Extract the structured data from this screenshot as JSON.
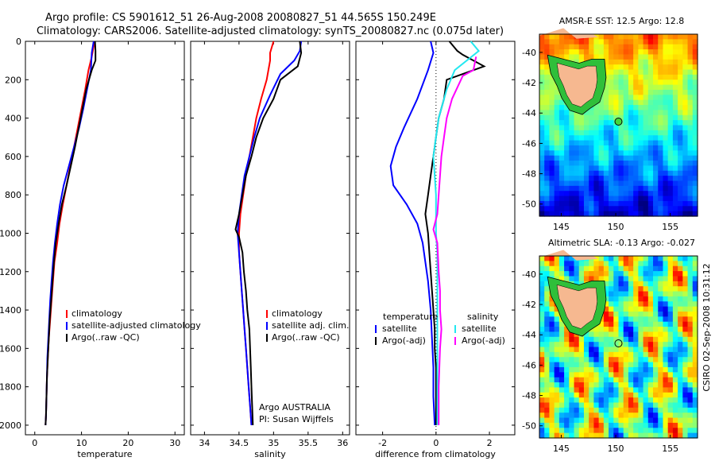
{
  "header": {
    "title_line1": "Argo profile: CS 5901612_51 26-Aug-2008 20080827_51 44.565S 150.249E",
    "title_line2": "Climatology: CARS2006. Satellite-adjusted climatology: synTS_20080827.nc (0.075d later)"
  },
  "timestamp": "CSIRO 02-Sep-2008 10:31:12",
  "colors": {
    "climatology": "#ff0000",
    "satellite": "#0000ff",
    "argo": "#000000",
    "salinity_satellite": "#22e8f0",
    "salinity_argo": "#ff00ff"
  },
  "chart_data": [
    {
      "type": "line",
      "name": "temperature-panel",
      "xlabel": "temperature",
      "ylabel": "",
      "xlim": [
        -2,
        32
      ],
      "ylim": [
        0,
        2050
      ],
      "xticks": [
        0,
        10,
        20,
        30
      ],
      "yticks": [
        0,
        200,
        400,
        600,
        800,
        1000,
        1200,
        1400,
        1600,
        1800,
        2000
      ],
      "y_reversed": true,
      "legend": [
        "climatology",
        "satellite-adjusted climatology",
        "Argo(..raw -QC)"
      ],
      "series": [
        {
          "name": "climatology",
          "color": "#ff0000",
          "points": [
            [
              12.8,
              0
            ],
            [
              12.2,
              80
            ],
            [
              11.5,
              150
            ],
            [
              10.8,
              250
            ],
            [
              10.0,
              350
            ],
            [
              9.2,
              450
            ],
            [
              8.4,
              550
            ],
            [
              7.6,
              650
            ],
            [
              6.8,
              750
            ],
            [
              6.0,
              850
            ],
            [
              5.3,
              950
            ],
            [
              4.8,
              1050
            ],
            [
              4.2,
              1150
            ],
            [
              3.9,
              1250
            ],
            [
              3.6,
              1350
            ],
            [
              3.3,
              1450
            ],
            [
              3.0,
              1550
            ],
            [
              2.8,
              1650
            ],
            [
              2.6,
              1750
            ],
            [
              2.5,
              1850
            ],
            [
              2.4,
              1950
            ],
            [
              2.3,
              2000
            ]
          ]
        },
        {
          "name": "satellite-adjusted climatology",
          "color": "#0000ff",
          "points": [
            [
              12.6,
              0
            ],
            [
              12.2,
              60
            ],
            [
              12.0,
              150
            ],
            [
              11.2,
              250
            ],
            [
              10.4,
              350
            ],
            [
              9.5,
              450
            ],
            [
              8.4,
              550
            ],
            [
              7.3,
              650
            ],
            [
              6.2,
              750
            ],
            [
              5.4,
              850
            ],
            [
              4.8,
              950
            ],
            [
              4.3,
              1050
            ],
            [
              3.9,
              1150
            ],
            [
              3.6,
              1250
            ],
            [
              3.3,
              1350
            ],
            [
              3.1,
              1450
            ],
            [
              2.9,
              1550
            ],
            [
              2.7,
              1650
            ],
            [
              2.6,
              1750
            ],
            [
              2.5,
              1850
            ],
            [
              2.4,
              1950
            ],
            [
              2.3,
              2000
            ]
          ]
        },
        {
          "name": "Argo(..raw -QC)",
          "color": "#000000",
          "points": [
            [
              12.9,
              0
            ],
            [
              13.0,
              50
            ],
            [
              13.0,
              100
            ],
            [
              12.2,
              150
            ],
            [
              11.0,
              250
            ],
            [
              10.2,
              350
            ],
            [
              9.4,
              450
            ],
            [
              8.6,
              550
            ],
            [
              7.7,
              650
            ],
            [
              6.8,
              750
            ],
            [
              5.8,
              850
            ],
            [
              5.1,
              950
            ],
            [
              4.5,
              1050
            ],
            [
              4.1,
              1150
            ],
            [
              3.8,
              1250
            ],
            [
              3.5,
              1350
            ],
            [
              3.2,
              1450
            ],
            [
              3.0,
              1550
            ],
            [
              2.8,
              1650
            ],
            [
              2.6,
              1750
            ],
            [
              2.5,
              1850
            ],
            [
              2.4,
              1950
            ],
            [
              2.3,
              2000
            ]
          ]
        }
      ]
    },
    {
      "type": "line",
      "name": "salinity-panel",
      "xlabel": "salinity",
      "xlim": [
        33.8,
        36.1
      ],
      "ylim": [
        0,
        2050
      ],
      "xticks": [
        34,
        34.5,
        35,
        35.5,
        36
      ],
      "y_reversed": true,
      "legend": [
        "climatology",
        "satellite adj. clim.",
        "Argo(..raw -QC)"
      ],
      "annotation_line1": "Argo AUSTRALIA",
      "annotation_line2": "PI: Susan Wijffels",
      "series": [
        {
          "name": "climatology",
          "color": "#ff0000",
          "points": [
            [
              35.0,
              0
            ],
            [
              34.95,
              60
            ],
            [
              34.95,
              100
            ],
            [
              34.9,
              200
            ],
            [
              34.82,
              300
            ],
            [
              34.75,
              400
            ],
            [
              34.7,
              500
            ],
            [
              34.65,
              600
            ],
            [
              34.6,
              700
            ],
            [
              34.56,
              800
            ],
            [
              34.52,
              900
            ],
            [
              34.5,
              1000
            ],
            [
              34.5,
              1100
            ],
            [
              34.52,
              1200
            ],
            [
              34.54,
              1300
            ],
            [
              34.56,
              1400
            ],
            [
              34.58,
              1500
            ],
            [
              34.6,
              1600
            ],
            [
              34.62,
              1700
            ],
            [
              34.64,
              1800
            ],
            [
              34.66,
              1900
            ],
            [
              34.68,
              2000
            ]
          ]
        },
        {
          "name": "satellite adj. clim.",
          "color": "#0000ff",
          "points": [
            [
              35.4,
              0
            ],
            [
              35.38,
              50
            ],
            [
              35.3,
              100
            ],
            [
              35.1,
              170
            ],
            [
              34.95,
              280
            ],
            [
              34.8,
              400
            ],
            [
              34.72,
              500
            ],
            [
              34.65,
              600
            ],
            [
              34.58,
              700
            ],
            [
              34.54,
              800
            ],
            [
              34.5,
              900
            ],
            [
              34.48,
              1000
            ],
            [
              34.5,
              1100
            ],
            [
              34.52,
              1200
            ],
            [
              34.54,
              1300
            ],
            [
              34.56,
              1400
            ],
            [
              34.58,
              1500
            ],
            [
              34.6,
              1600
            ],
            [
              34.62,
              1700
            ],
            [
              34.64,
              1800
            ],
            [
              34.66,
              1900
            ],
            [
              34.68,
              2000
            ]
          ]
        },
        {
          "name": "Argo(..raw -QC)",
          "color": "#000000",
          "points": [
            [
              35.38,
              0
            ],
            [
              35.4,
              60
            ],
            [
              35.35,
              130
            ],
            [
              35.1,
              200
            ],
            [
              35.0,
              300
            ],
            [
              34.85,
              400
            ],
            [
              34.75,
              500
            ],
            [
              34.68,
              600
            ],
            [
              34.6,
              700
            ],
            [
              34.55,
              800
            ],
            [
              34.5,
              900
            ],
            [
              34.45,
              980
            ],
            [
              34.5,
              1020
            ],
            [
              34.55,
              1100
            ],
            [
              34.57,
              1200
            ],
            [
              34.6,
              1300
            ],
            [
              34.62,
              1400
            ],
            [
              34.65,
              1500
            ],
            [
              34.66,
              1600
            ],
            [
              34.67,
              1700
            ],
            [
              34.68,
              1800
            ],
            [
              34.69,
              1900
            ],
            [
              34.7,
              2000
            ]
          ]
        }
      ]
    },
    {
      "type": "line",
      "name": "difference-panel",
      "xlabel": "difference from climatology",
      "xlim": [
        -3,
        2.95
      ],
      "ylim": [
        0,
        2050
      ],
      "xticks": [
        -2,
        0,
        2
      ],
      "y_reversed": true,
      "legend_temperature": [
        "temperature",
        "satellite",
        "Argo(-adj)"
      ],
      "legend_salinity": [
        "salinity",
        "satellite",
        "Argo(-adj)"
      ],
      "series": [
        {
          "name": "temperature satellite",
          "color": "#0000ff",
          "points": [
            [
              -0.2,
              0
            ],
            [
              -0.1,
              60
            ],
            [
              -0.3,
              150
            ],
            [
              -0.7,
              300
            ],
            [
              -1.2,
              450
            ],
            [
              -1.5,
              550
            ],
            [
              -1.7,
              650
            ],
            [
              -1.6,
              750
            ],
            [
              -1.1,
              850
            ],
            [
              -0.7,
              950
            ],
            [
              -0.5,
              1050
            ],
            [
              -0.4,
              1150
            ],
            [
              -0.3,
              1250
            ],
            [
              -0.2,
              1400
            ],
            [
              -0.15,
              1550
            ],
            [
              -0.1,
              1700
            ],
            [
              -0.1,
              1850
            ],
            [
              -0.05,
              2000
            ]
          ]
        },
        {
          "name": "temperature Argo(-adj)",
          "color": "#000000",
          "points": [
            [
              0.5,
              0
            ],
            [
              0.8,
              50
            ],
            [
              1.0,
              70
            ],
            [
              1.8,
              130
            ],
            [
              0.4,
              200
            ],
            [
              0.3,
              300
            ],
            [
              0.1,
              400
            ],
            [
              0.0,
              500
            ],
            [
              -0.1,
              600
            ],
            [
              -0.2,
              700
            ],
            [
              -0.3,
              800
            ],
            [
              -0.4,
              900
            ],
            [
              -0.3,
              1000
            ],
            [
              -0.25,
              1100
            ],
            [
              -0.2,
              1200
            ],
            [
              -0.15,
              1300
            ],
            [
              -0.1,
              1400
            ],
            [
              -0.05,
              1500
            ],
            [
              -0.05,
              1600
            ],
            [
              0.0,
              1700
            ],
            [
              0.0,
              1800
            ],
            [
              0.0,
              1900
            ],
            [
              0.0,
              2000
            ]
          ]
        },
        {
          "name": "salinity satellite",
          "color": "#22e8f0",
          "points": [
            [
              1.3,
              0
            ],
            [
              1.6,
              50
            ],
            [
              0.7,
              150
            ],
            [
              0.4,
              250
            ],
            [
              0.1,
              400
            ],
            [
              0.0,
              500
            ],
            [
              -0.1,
              600
            ],
            [
              -0.05,
              700
            ],
            [
              0.0,
              800
            ],
            [
              0.0,
              900
            ],
            [
              0.0,
              1000
            ],
            [
              0.05,
              1100
            ],
            [
              0.05,
              1200
            ],
            [
              0.05,
              1300
            ],
            [
              0.05,
              1400
            ],
            [
              0.05,
              1600
            ],
            [
              0.05,
              1800
            ],
            [
              0.05,
              2000
            ]
          ]
        },
        {
          "name": "salinity Argo(-adj)",
          "color": "#ff00ff",
          "points": [
            [
              1.5,
              80
            ],
            [
              1.4,
              150
            ],
            [
              1.0,
              180
            ],
            [
              0.6,
              300
            ],
            [
              0.4,
              400
            ],
            [
              0.3,
              500
            ],
            [
              0.2,
              600
            ],
            [
              0.15,
              700
            ],
            [
              0.1,
              800
            ],
            [
              0.05,
              900
            ],
            [
              -0.1,
              980
            ],
            [
              0.05,
              1050
            ],
            [
              0.1,
              1200
            ],
            [
              0.15,
              1300
            ],
            [
              0.15,
              1400
            ],
            [
              0.2,
              1500
            ],
            [
              0.15,
              1600
            ],
            [
              0.1,
              1800
            ],
            [
              0.1,
              2000
            ]
          ]
        }
      ]
    },
    {
      "type": "heatmap",
      "name": "sst-map",
      "title": "AMSR-E SST: 12.5 Argo: 12.8",
      "xlim": [
        143,
        157.5
      ],
      "ylim": [
        -50.8,
        -38.8
      ],
      "xticks": [
        145,
        150,
        155
      ],
      "yticks": [
        -40,
        -42,
        -44,
        -46,
        -48,
        -50
      ],
      "float_position": [
        150.249,
        -44.565
      ],
      "colormap": "jet",
      "note": "warm in north, cold in south"
    },
    {
      "type": "heatmap",
      "name": "sla-map",
      "title": "Altimetric SLA: -0.13 Argo: -0.027",
      "xlim": [
        143,
        157.5
      ],
      "ylim": [
        -50.8,
        -38.8
      ],
      "xticks": [
        145,
        150,
        155
      ],
      "yticks": [
        -40,
        -42,
        -44,
        -46,
        -48,
        -50
      ],
      "float_position": [
        150.249,
        -44.565
      ],
      "colormap": "jet"
    }
  ]
}
